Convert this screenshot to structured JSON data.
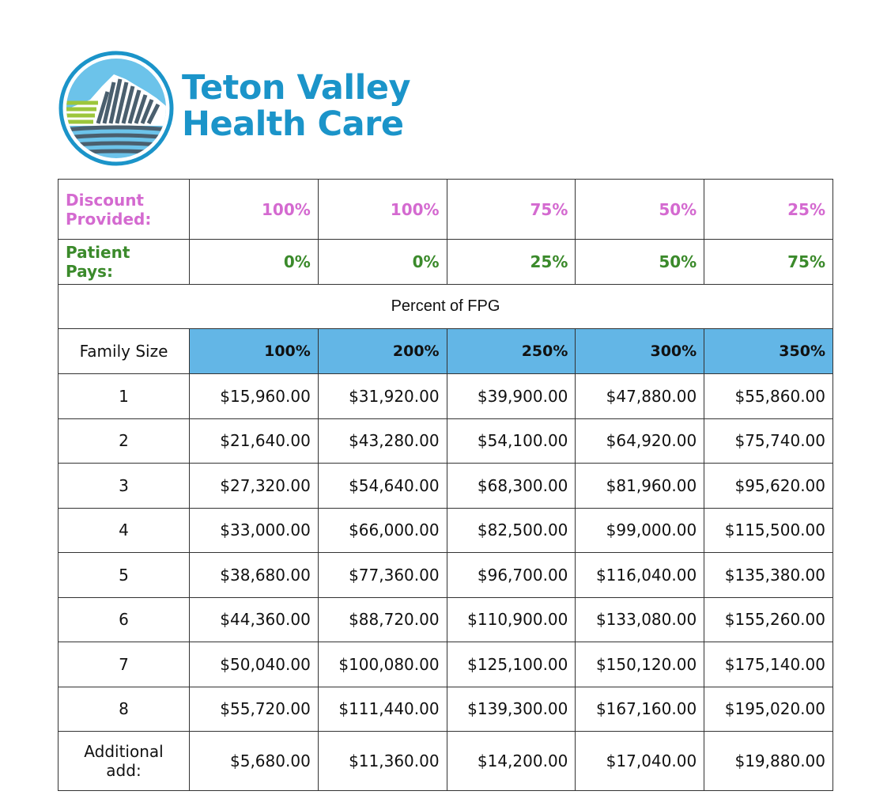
{
  "header": {
    "logo_line1": "Teton Valley",
    "logo_line2": "Health Care",
    "brand_color": "#1b94c9"
  },
  "table": {
    "discount_label": "Discount Provided:",
    "discount_values": [
      "100%",
      "100%",
      "75%",
      "50%",
      "25%"
    ],
    "pays_label": "Patient Pays:",
    "pays_values": [
      "0%",
      "0%",
      "25%",
      "50%",
      "75%"
    ],
    "fpg_title": "Percent of FPG",
    "family_size_label": "Family Size",
    "fpg_columns": [
      "100%",
      "200%",
      "250%",
      "300%",
      "350%"
    ],
    "rows": [
      {
        "size": "1",
        "values": [
          "$15,960.00",
          "$31,920.00",
          "$39,900.00",
          "$47,880.00",
          "$55,860.00"
        ]
      },
      {
        "size": "2",
        "values": [
          "$21,640.00",
          "$43,280.00",
          "$54,100.00",
          "$64,920.00",
          "$75,740.00"
        ]
      },
      {
        "size": "3",
        "values": [
          "$27,320.00",
          "$54,640.00",
          "$68,300.00",
          "$81,960.00",
          "$95,620.00"
        ]
      },
      {
        "size": "4",
        "values": [
          "$33,000.00",
          "$66,000.00",
          "$82,500.00",
          "$99,000.00",
          "$115,500.00"
        ]
      },
      {
        "size": "5",
        "values": [
          "$38,680.00",
          "$77,360.00",
          "$96,700.00",
          "$116,040.00",
          "$135,380.00"
        ]
      },
      {
        "size": "6",
        "values": [
          "$44,360.00",
          "$88,720.00",
          "$110,900.00",
          "$133,080.00",
          "$155,260.00"
        ]
      },
      {
        "size": "7",
        "values": [
          "$50,040.00",
          "$100,080.00",
          "$125,100.00",
          "$150,120.00",
          "$175,140.00"
        ]
      },
      {
        "size": "8",
        "values": [
          "$55,720.00",
          "$111,440.00",
          "$139,300.00",
          "$167,160.00",
          "$195,020.00"
        ]
      },
      {
        "size": "Additional add:",
        "values": [
          "$5,680.00",
          "$11,360.00",
          "$14,200.00",
          "$17,040.00",
          "$19,880.00"
        ]
      }
    ],
    "colors": {
      "discount": "#d46ad0",
      "patient_pays": "#3b8a2b",
      "header_fill": "#63b6e6"
    }
  }
}
